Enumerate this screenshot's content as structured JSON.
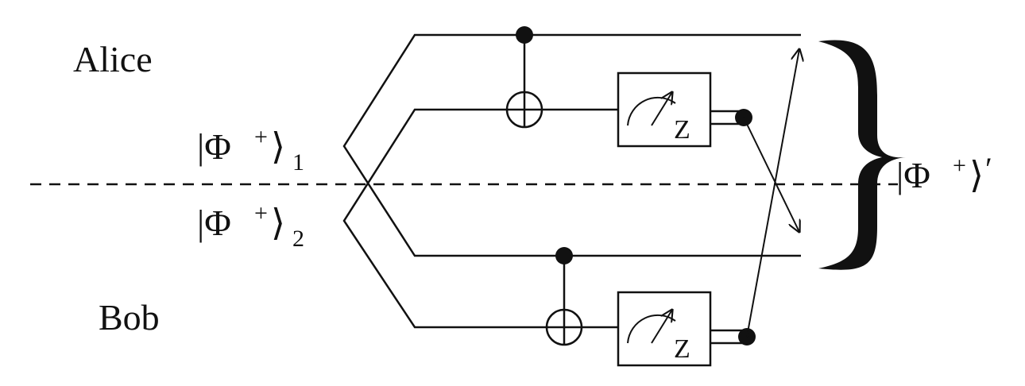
{
  "labels": {
    "alice": "Alice",
    "bob": "Bob",
    "phi1_main": "|Φ",
    "phi1_sup": "+",
    "phi1_close": "⟩",
    "phi1_sub": "1",
    "phi2_main": "|Φ",
    "phi2_sup": "+",
    "phi2_close": "⟩",
    "phi2_sub": "2",
    "result_main": "|Φ",
    "result_sup": "+",
    "result_close": "⟩",
    "result_prime": "′",
    "meter_z_top": "Z",
    "meter_z_bottom": "Z"
  },
  "colors": {
    "ink": "#111111",
    "background": "#ffffff"
  }
}
